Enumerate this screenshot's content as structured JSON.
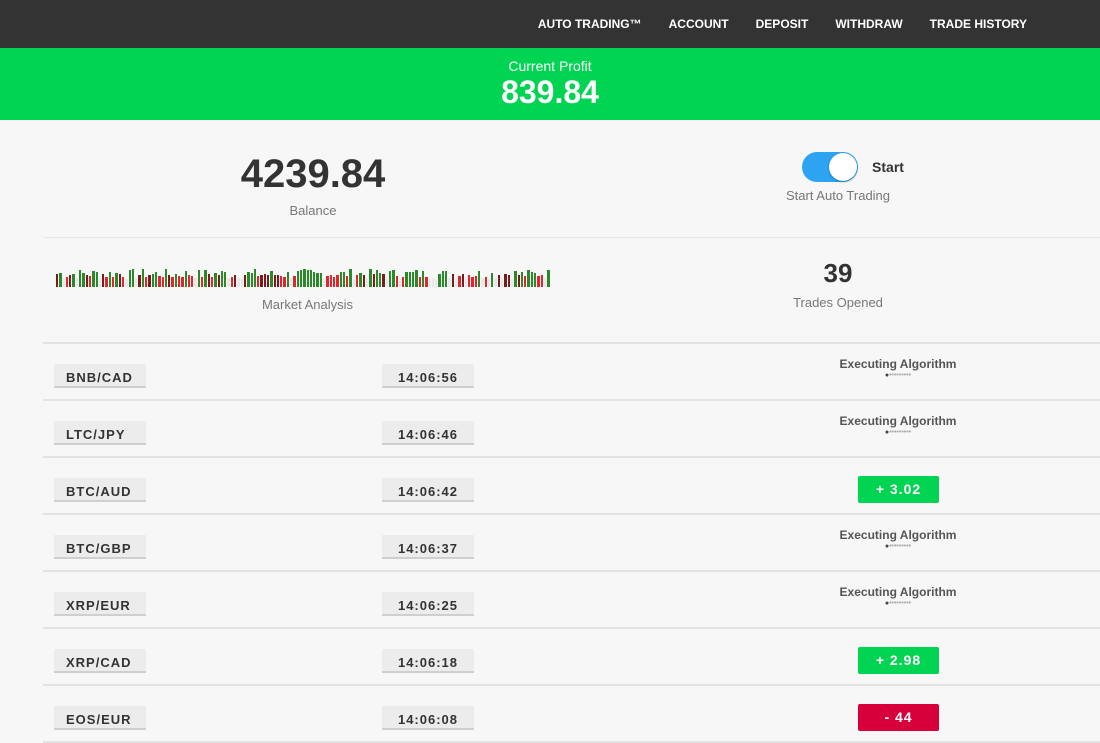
{
  "nav": [
    "AUTO TRADING™",
    "ACCOUNT",
    "DEPOSIT",
    "WITHDRAW",
    "TRADE HISTORY"
  ],
  "profit": {
    "label": "Current Profit",
    "value": "839.84"
  },
  "balance": {
    "value": "4239.84",
    "label": "Balance"
  },
  "auto": {
    "toggle_on": true,
    "toggle_label": "Start",
    "label": "Start Auto Trading"
  },
  "market": {
    "label": "Market Analysis"
  },
  "trades": {
    "value": "39",
    "label": "Trades Opened"
  },
  "colors": {
    "green": "#00d452",
    "red": "#d6003a",
    "nav": "#333333",
    "toggle": "#2ea3f2"
  },
  "rows": [
    {
      "pair": "BNB/CAD",
      "time": "14:06:56",
      "status": "Executing Algorithm"
    },
    {
      "pair": "LTC/JPY",
      "time": "14:06:46",
      "status": "Executing Algorithm"
    },
    {
      "pair": "BTC/AUD",
      "time": "14:06:42",
      "result": "+  3.02",
      "type": "pos"
    },
    {
      "pair": "BTC/GBP",
      "time": "14:06:37",
      "status": "Executing Algorithm"
    },
    {
      "pair": "XRP/EUR",
      "time": "14:06:25",
      "status": "Executing Algorithm"
    },
    {
      "pair": "XRP/CAD",
      "time": "14:06:18",
      "result": "+  2.98",
      "type": "pos"
    },
    {
      "pair": "EOS/EUR",
      "time": "14:06:08",
      "result": "-   44",
      "type": "neg"
    }
  ]
}
